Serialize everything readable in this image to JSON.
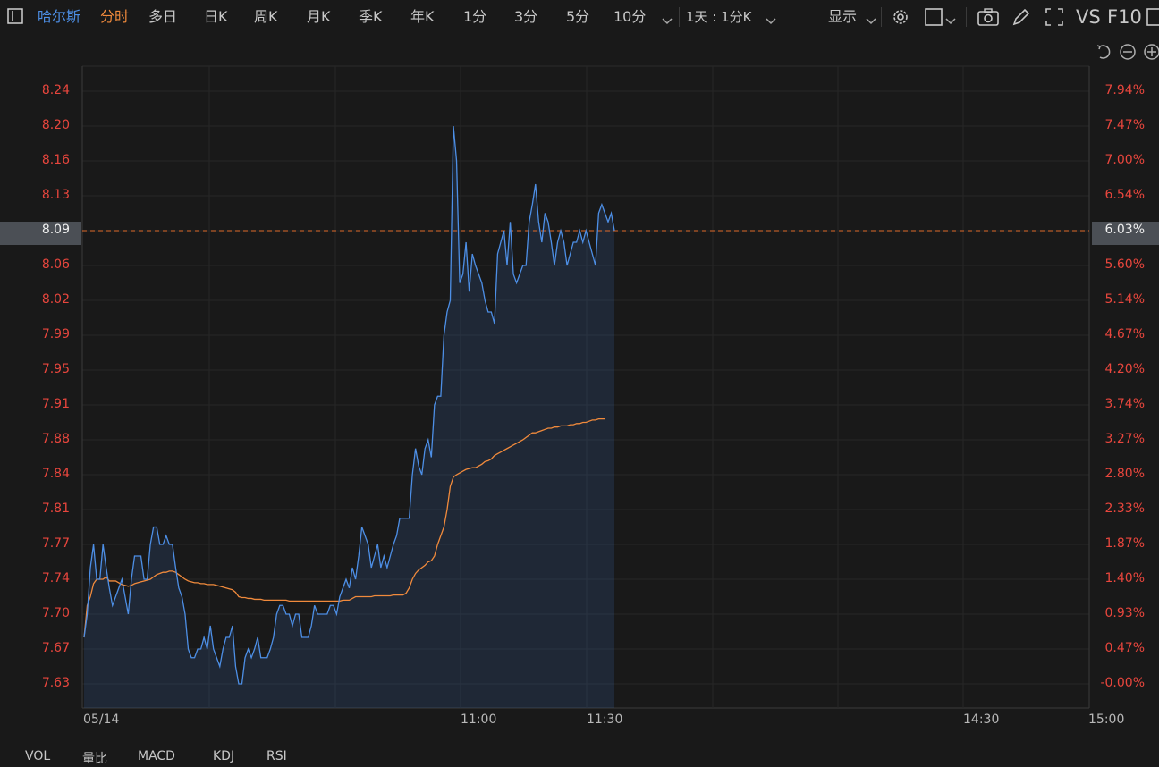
{
  "toolbar": {
    "stock_name": "哈尔斯",
    "tabs": [
      "分时",
      "多日",
      "日K",
      "周K",
      "月K",
      "季K",
      "年K",
      "1分",
      "3分",
      "5分",
      "10分"
    ],
    "active_tab": "分时",
    "range_label": "1天 : 1分K",
    "display_label": "显示",
    "vs_label": "VS",
    "f10_label": "F10"
  },
  "colors": {
    "price_line": "#4d8fe6",
    "avg_line": "#f08a3c",
    "axis_text": "#e8463d",
    "ref_line": "#e06a2a"
  },
  "chart_data": {
    "type": "line",
    "y_ticks": [
      "8.24",
      "8.20",
      "8.16",
      "8.13",
      "8.09",
      "8.06",
      "8.02",
      "7.99",
      "7.95",
      "7.91",
      "7.88",
      "7.84",
      "7.81",
      "7.77",
      "7.74",
      "7.70",
      "7.67",
      "7.63"
    ],
    "pct_ticks": [
      "7.94%",
      "7.47%",
      "7.00%",
      "6.54%",
      "6.03%",
      "5.60%",
      "5.14%",
      "4.67%",
      "4.20%",
      "3.74%",
      "3.27%",
      "2.80%",
      "2.33%",
      "1.87%",
      "1.40%",
      "0.93%",
      "0.47%",
      "-0.00%"
    ],
    "x_labels": [
      "05/14",
      "11:00",
      "11:30",
      "14:30",
      "15:00"
    ],
    "current_price": "8.09",
    "current_pct": "6.03%",
    "ylim": [
      7.63,
      8.24
    ],
    "price": [
      7.68,
      7.7,
      7.75,
      7.77,
      7.74,
      7.74,
      7.77,
      7.75,
      7.73,
      7.71,
      7.72,
      7.73,
      7.74,
      7.72,
      7.7,
      7.74,
      7.76,
      7.76,
      7.76,
      7.74,
      7.74,
      7.77,
      7.79,
      7.79,
      7.77,
      7.77,
      7.78,
      7.77,
      7.77,
      7.75,
      7.73,
      7.72,
      7.7,
      7.67,
      7.66,
      7.66,
      7.67,
      7.67,
      7.68,
      7.67,
      7.69,
      7.67,
      7.66,
      7.65,
      7.67,
      7.68,
      7.68,
      7.69,
      7.65,
      7.63,
      7.63,
      7.66,
      7.67,
      7.66,
      7.67,
      7.68,
      7.66,
      7.66,
      7.66,
      7.67,
      7.68,
      7.7,
      7.71,
      7.71,
      7.7,
      7.7,
      7.69,
      7.7,
      7.7,
      7.68,
      7.68,
      7.68,
      7.69,
      7.71,
      7.7,
      7.7,
      7.7,
      7.7,
      7.71,
      7.71,
      7.7,
      7.72,
      7.73,
      7.74,
      7.73,
      7.75,
      7.74,
      7.76,
      7.79,
      7.78,
      7.77,
      7.75,
      7.76,
      7.77,
      7.75,
      7.76,
      7.75,
      7.76,
      7.77,
      7.78,
      7.8,
      7.8,
      7.8,
      7.8,
      7.84,
      7.87,
      7.85,
      7.84,
      7.87,
      7.88,
      7.86,
      7.91,
      7.92,
      7.92,
      7.99,
      8.01,
      8.02,
      8.2,
      8.16,
      8.04,
      8.05,
      8.08,
      8.03,
      8.07,
      8.06,
      8.05,
      8.04,
      8.02,
      8.01,
      8.01,
      8.0,
      8.07,
      8.08,
      8.09,
      8.06,
      8.1,
      8.05,
      8.04,
      8.05,
      8.06,
      8.06,
      8.1,
      8.12,
      8.14,
      8.1,
      8.08,
      8.11,
      8.1,
      8.08,
      8.06,
      8.08,
      8.09,
      8.08,
      8.06,
      8.07,
      8.08,
      8.08,
      8.09,
      8.08,
      8.09,
      8.08,
      8.07,
      8.06,
      8.11,
      8.12,
      8.11,
      8.1,
      8.11,
      8.09
    ],
    "avg": [
      7.68,
      7.71,
      7.72,
      7.735,
      7.74,
      7.74,
      7.74,
      7.742,
      7.738,
      7.738,
      7.738,
      7.736,
      7.734,
      7.733,
      7.732,
      7.733,
      7.735,
      7.736,
      7.737,
      7.738,
      7.739,
      7.74,
      7.742,
      7.744,
      7.745,
      7.746,
      7.746,
      7.747,
      7.747,
      7.746,
      7.744,
      7.742,
      7.74,
      7.738,
      7.737,
      7.736,
      7.736,
      7.735,
      7.735,
      7.734,
      7.734,
      7.734,
      7.733,
      7.732,
      7.731,
      7.73,
      7.729,
      7.728,
      7.725,
      7.72,
      7.719,
      7.719,
      7.718,
      7.718,
      7.717,
      7.717,
      7.717,
      7.716,
      7.716,
      7.716,
      7.716,
      7.716,
      7.716,
      7.716,
      7.716,
      7.715,
      7.715,
      7.715,
      7.715,
      7.715,
      7.715,
      7.715,
      7.715,
      7.715,
      7.715,
      7.715,
      7.715,
      7.715,
      7.715,
      7.715,
      7.715,
      7.715,
      7.716,
      7.716,
      7.716,
      7.718,
      7.72,
      7.72,
      7.72,
      7.72,
      7.72,
      7.72,
      7.721,
      7.721,
      7.721,
      7.721,
      7.721,
      7.721,
      7.722,
      7.722,
      7.722,
      7.722,
      7.724,
      7.73,
      7.74,
      7.745,
      7.748,
      7.75,
      7.752,
      7.755,
      7.756,
      7.76,
      7.77,
      7.78,
      7.79,
      7.81,
      7.83,
      7.838,
      7.84,
      7.842,
      7.844,
      7.846,
      7.847,
      7.848,
      7.848,
      7.85,
      7.852,
      7.855,
      7.856,
      7.858,
      7.862,
      7.864,
      7.866,
      7.868,
      7.87,
      7.872,
      7.874,
      7.876,
      7.878,
      7.88,
      7.882,
      7.884,
      7.886,
      7.886,
      7.887,
      7.888,
      7.889,
      7.89,
      7.89,
      7.891,
      7.891,
      7.892,
      7.892,
      7.892,
      7.893,
      7.893,
      7.894,
      7.894,
      7.895,
      7.895,
      7.896,
      7.897,
      7.897,
      7.898,
      7.898,
      7.898
    ]
  },
  "bottom_tabs": [
    "VOL",
    "量比",
    "MACD",
    "KDJ",
    "RSI"
  ]
}
